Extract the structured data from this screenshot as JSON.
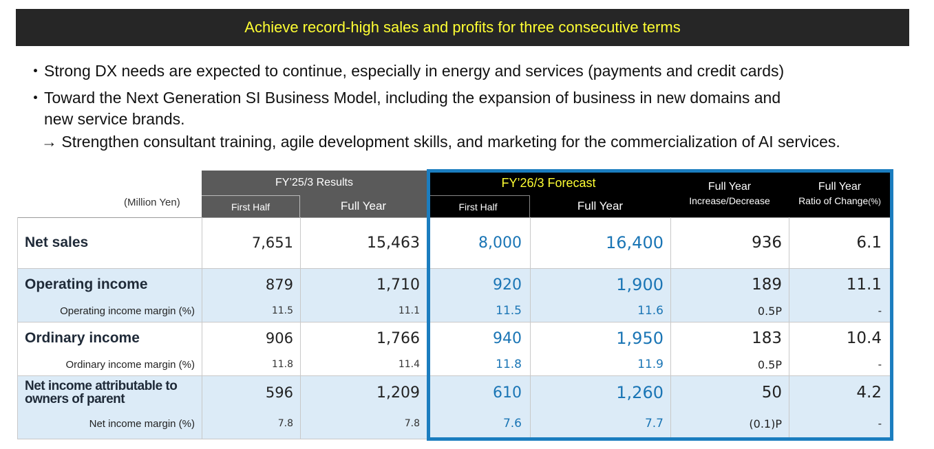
{
  "banner": {
    "title": "Achieve record-high sales and profits for three consecutive terms"
  },
  "bullets": {
    "dot": "・",
    "item1": "Strong DX needs are expected to continue, especially in energy and services (payments and credit cards)",
    "item2_line1": "Toward the Next Generation SI Business Model, including the expansion of business in new domains and",
    "item2_line2": "new service brands.",
    "arrow_line": "→ Strengthen consultant training, agile development skills, and marketing for the commercialization of AI services."
  },
  "table": {
    "unit": "(Million Yen)",
    "results_header": "FY’25/3  Results",
    "forecast_header": "FY’26/3  Forecast",
    "first_half": "First Half",
    "full_year": "Full Year",
    "change_header_1": "Full Year",
    "change_header_2": "Increase/Decrease",
    "ratio_header_1": "Full Year",
    "ratio_header_2": "Ratio of Change",
    "ratio_header_pct": "(%)",
    "rows": [
      {
        "label": "Net sales",
        "r_h1": "7,651",
        "r_fy": "15,463",
        "f_h1": "8,000",
        "f_fy": "16,400",
        "inc": "936",
        "ratio": "6.1"
      },
      {
        "label": "Operating income",
        "r_h1": "879",
        "r_fy": "1,710",
        "f_h1": "920",
        "f_fy": "1,900",
        "inc": "189",
        "ratio": "11.1"
      },
      {
        "label": "Operating income margin (%)",
        "r_h1": "11.5",
        "r_fy": "11.1",
        "f_h1": "11.5",
        "f_fy": "11.6",
        "inc": "0.5P",
        "ratio": "-"
      },
      {
        "label": "Ordinary income",
        "r_h1": "906",
        "r_fy": "1,766",
        "f_h1": "940",
        "f_fy": "1,950",
        "inc": "183",
        "ratio": "10.4"
      },
      {
        "label": "Ordinary income margin (%)",
        "r_h1": "11.8",
        "r_fy": "11.4",
        "f_h1": "11.8",
        "f_fy": "11.9",
        "inc": "0.5P",
        "ratio": "-"
      },
      {
        "label_line1": "Net income attributable to",
        "label_line2": "owners of parent",
        "r_h1": "596",
        "r_fy": "1,209",
        "f_h1": "610",
        "f_fy": "1,260",
        "inc": "50",
        "ratio": "4.2"
      },
      {
        "label": "Net income margin (%)",
        "r_h1": "7.8",
        "r_fy": "7.8",
        "f_h1": "7.6",
        "f_fy": "7.7",
        "inc": "(0.1)P",
        "ratio": "-"
      }
    ]
  },
  "colors": {
    "banner_bg": "#262626",
    "banner_text": "#ffff33",
    "forecast_blue": "#1a75b5",
    "row_shade": "#dcebf7",
    "frame_blue": "#1b7dbf"
  }
}
